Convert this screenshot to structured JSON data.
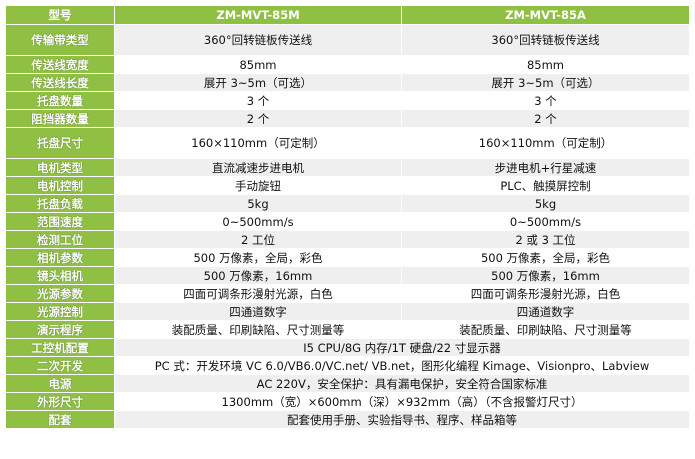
{
  "table": {
    "header": [
      "型号",
      "ZM-MVT-85M",
      "ZM-MVT-85A"
    ],
    "rows": [
      [
        "传输带类型",
        "360°回转链板传送线",
        "360°回转链板传送线"
      ],
      [
        "传送线宽度",
        "85mm",
        "85mm"
      ],
      [
        "传送线长度",
        "展开 3~5m（可选）",
        "展开 3~5m（可选）"
      ],
      [
        "托盘数量",
        "3 个",
        "3 个"
      ],
      [
        "阻挡器数量",
        "2 个",
        "2 个"
      ],
      [
        "托盘尺寸",
        "160×110mm（可定制）",
        "160×110mm（可定制）"
      ],
      [
        "电机类型",
        "直流减速步进电机",
        "步进电机+行星减速"
      ],
      [
        "电机控制",
        "手动旋钮",
        "PLC、触摸屏控制"
      ],
      [
        "托盘负载",
        "5kg",
        "5kg"
      ],
      [
        "范围速度",
        "0~500mm/s",
        "0~500mm/s"
      ],
      [
        "检测工位",
        "2 工位",
        "2 或 3 工位"
      ],
      [
        "相机参数",
        "500 万像素，全局，彩色",
        "500 万像素，全局，彩色"
      ],
      [
        "镜头相机",
        "500 万像素，16mm",
        "500 万像素，16mm"
      ],
      [
        "光源参数",
        "四面可调条形漫射光源，白色",
        "四面可调条形漫射光源，白色"
      ],
      [
        "光源控制",
        "四通道数字",
        "四通道数字"
      ],
      [
        "演示程序",
        "装配质量、印刷缺陷、尺寸测量等",
        "装配质量、印刷缺陷、尺寸测量等"
      ],
      [
        "工控机配置",
        "I5 CPU/8G 内存/1T 硬盘/22 寸显示器"
      ],
      [
        "二次开发",
        "PC 式：开发环境 VC 6.0/VB6.0/VC.net/ VB.net，图形化编程 Kimage、Visionpro、Labview"
      ],
      [
        "电源",
        "AC 220V，安全保护：具有漏电保护，安全符合国家标准"
      ],
      [
        "外形尺寸",
        "1300mm（宽）×600mm（深）×932mm（高）（不含报警灯尺寸）"
      ],
      [
        "配套",
        "配套使用手册、实验指导书、程序、样品箱等"
      ]
    ]
  }
}
